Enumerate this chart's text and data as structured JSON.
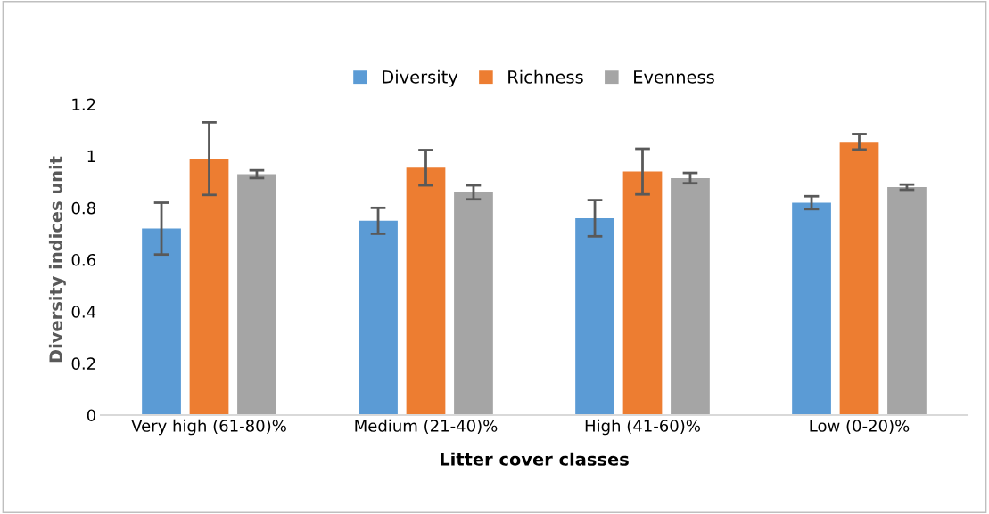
{
  "chart_data": {
    "type": "bar",
    "xlabel": "Litter cover classes",
    "ylabel": "Diversity indices unit",
    "categories": [
      "Very high (61-80)%",
      "Medium (21-40)%",
      "High (41-60)%",
      "Low (0-20)%"
    ],
    "series": [
      {
        "name": "Diversity",
        "color": "#5b9bd5",
        "values": [
          0.72,
          0.75,
          0.76,
          0.82
        ],
        "errors": [
          0.1,
          0.05,
          0.07,
          0.025
        ]
      },
      {
        "name": "Richness",
        "color": "#ed7d31",
        "values": [
          0.99,
          0.955,
          0.94,
          1.055
        ],
        "errors": [
          0.14,
          0.068,
          0.088,
          0.03
        ]
      },
      {
        "name": "Evenness",
        "color": "#a5a5a5",
        "values": [
          0.93,
          0.86,
          0.915,
          0.88
        ],
        "errors": [
          0.015,
          0.027,
          0.02,
          0.01
        ]
      }
    ],
    "ylim": [
      0,
      1.2
    ],
    "yticks": [
      0,
      0.2,
      0.4,
      0.6,
      0.8,
      1,
      1.2
    ],
    "grid": false,
    "legend": "top"
  }
}
